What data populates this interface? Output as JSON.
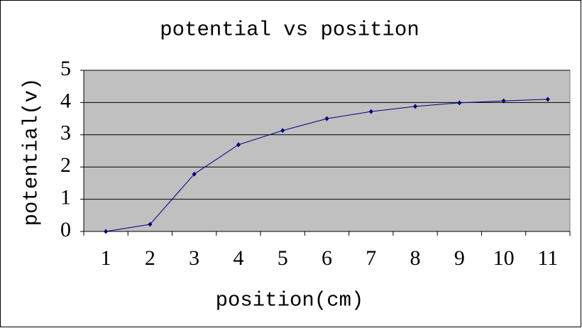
{
  "chart_data": {
    "type": "line",
    "title": "potential vs position",
    "x_label": "position(cm)",
    "y_label": "potential(v)",
    "categories": [
      "1",
      "2",
      "3",
      "4",
      "5",
      "6",
      "7",
      "8",
      "9",
      "10",
      "11"
    ],
    "series": [
      {
        "name": "potential",
        "color": "#000080",
        "values": [
          0,
          0.22,
          1.78,
          2.69,
          3.13,
          3.5,
          3.72,
          3.88,
          3.99,
          4.05,
          4.1
        ]
      }
    ],
    "ylim": [
      0,
      5
    ],
    "yticks": [
      0,
      1,
      2,
      3,
      4,
      5
    ],
    "grid": true,
    "plot_background": "#c0c0c0"
  }
}
